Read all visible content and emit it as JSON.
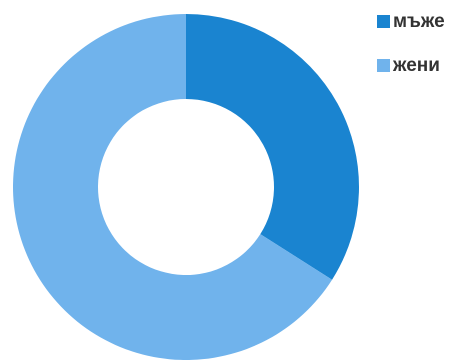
{
  "chart_data": {
    "type": "pie",
    "categories": [
      "мъже",
      "жени"
    ],
    "values": [
      34,
      66
    ],
    "colors": [
      "#1a84d0",
      "#70b3ec"
    ],
    "donut": true,
    "legend": "top-right"
  }
}
